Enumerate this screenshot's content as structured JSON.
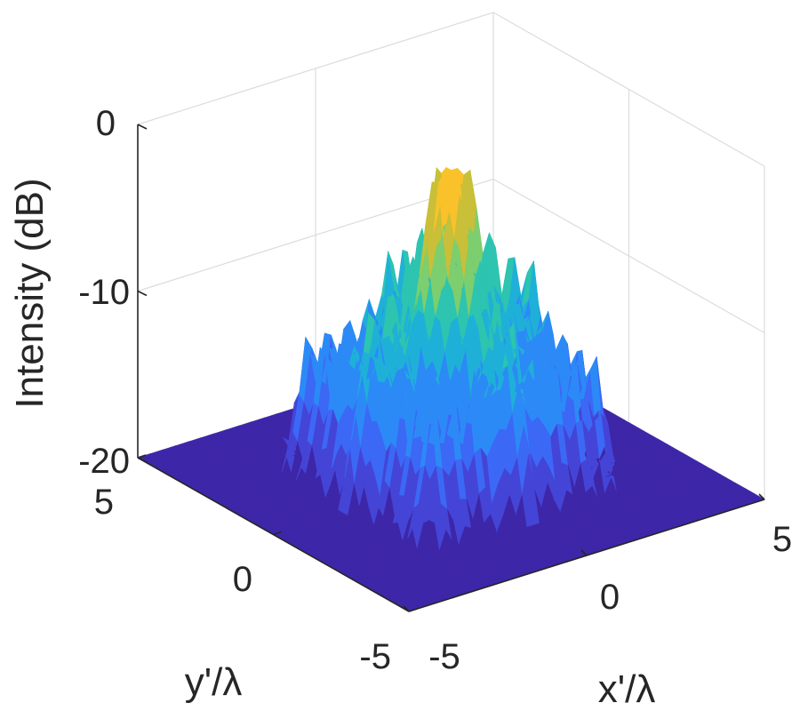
{
  "chart_data": {
    "type": "surface",
    "zlabel": "Intensity (dB)",
    "xlabel": "x'/λ",
    "ylabel": "y'/λ",
    "z_ticks": [
      "0",
      "-10",
      "-20"
    ],
    "x_ticks": [
      "-5",
      "0",
      "5"
    ],
    "y_ticks": [
      "5",
      "0",
      "-5"
    ],
    "xlim": [
      -5,
      5
    ],
    "ylim": [
      -5,
      5
    ],
    "zlim": [
      -20,
      0
    ],
    "grid": true,
    "colormap": [
      "#3e26a8",
      "#4445d6",
      "#3c68f6",
      "#2c8af6",
      "#1fb0d8",
      "#2dc4b0",
      "#7cce6e",
      "#c9bf38",
      "#f9c22b",
      "#f9fb0e"
    ],
    "surface": {
      "description_values": {
        "floor_level_db": -20,
        "peak_level_db": -1.5,
        "plateau_level_db": -10,
        "support_half_width": 3.0
      }
    }
  }
}
